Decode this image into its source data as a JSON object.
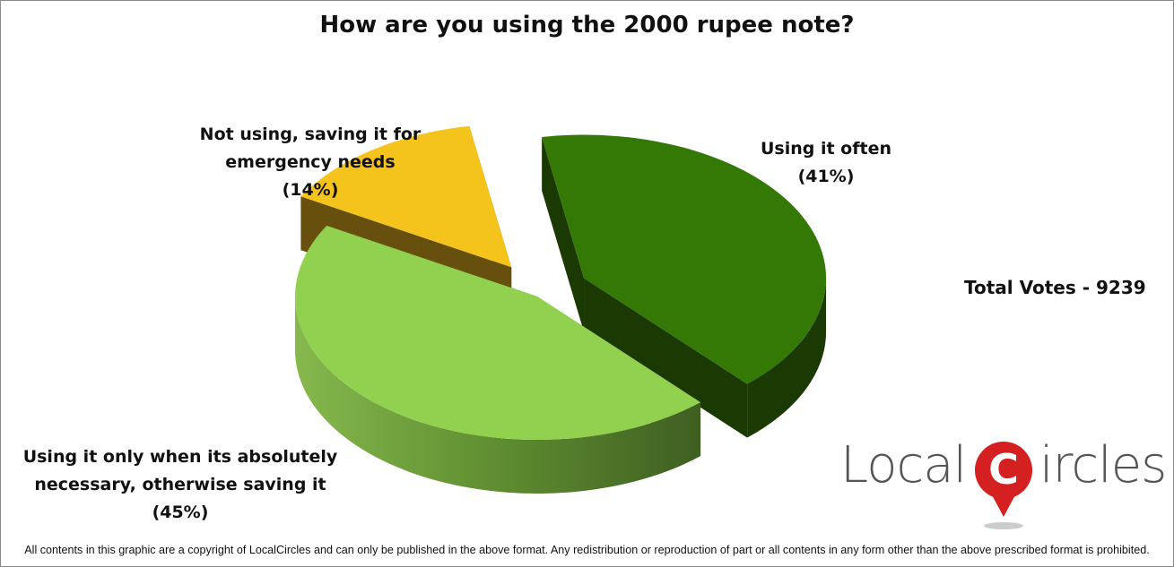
{
  "chart_data": {
    "type": "pie",
    "title": "How are you using the 2000 rupee note?",
    "categories": [
      "Using it often",
      "Using it only when its absolutely necessary, otherwise saving it",
      "Not using, saving it for emergency needs"
    ],
    "values": [
      41,
      45,
      14
    ],
    "value_labels": [
      "(41%)",
      "(45%)",
      "(14%)"
    ],
    "colors": [
      "#347806",
      "#92d050",
      "#f5c41c"
    ],
    "annotation": "Total Votes - 9239"
  },
  "logo": [
    "Local",
    "C",
    "ircles"
  ],
  "footer": "All contents in this graphic are a copyright of LocalCircles and can only be published in the above format. Any redistribution or reproduction of part or all contents in any form other than the above prescribed format is prohibited."
}
